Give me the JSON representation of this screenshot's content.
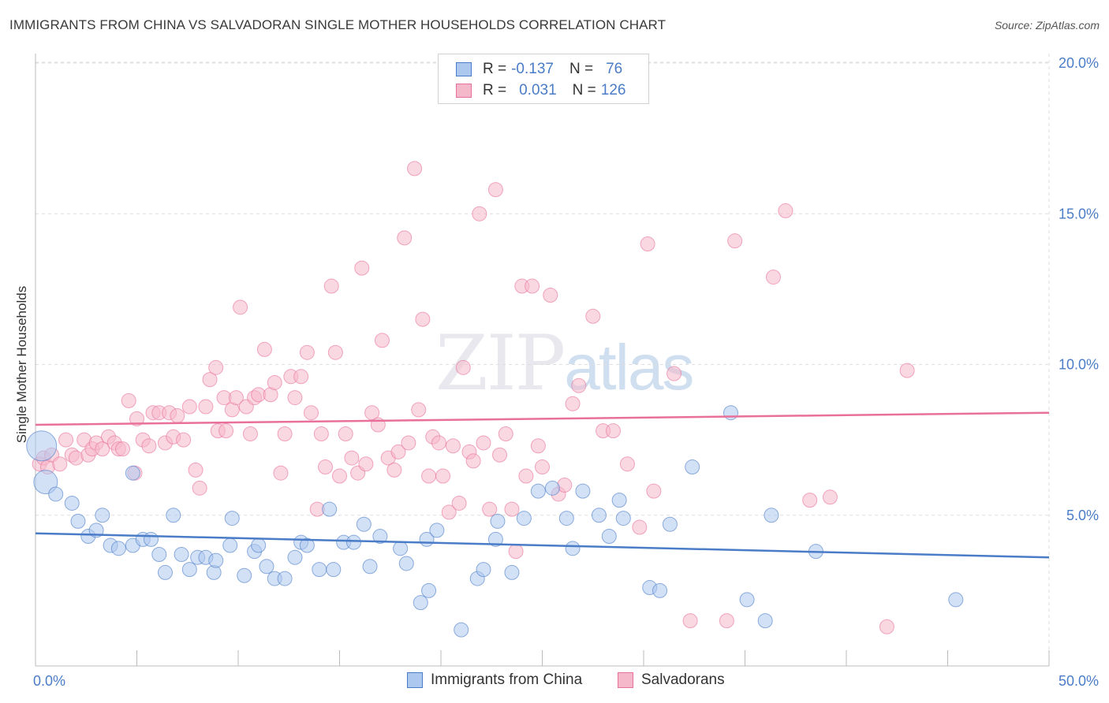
{
  "title": "IMMIGRANTS FROM CHINA VS SALVADORAN SINGLE MOTHER HOUSEHOLDS CORRELATION CHART",
  "source": "Source: ZipAtlas.com",
  "watermark": {
    "zip": "ZIP",
    "atlas": "atlas"
  },
  "legend": {
    "r_label": "R =",
    "n_label": "N =",
    "series": [
      {
        "r": "-0.137",
        "n": "76"
      },
      {
        "r": "0.031",
        "n": "126"
      }
    ]
  },
  "bottom_legend": [
    "Immigrants from China",
    "Salvadorans"
  ],
  "colors": {
    "blue": "#4a7cc7",
    "blue_fill": "#adc8ef",
    "pink": "#e8709a",
    "pink_fill": "#f5b8cb",
    "grid": "#dddddd"
  },
  "chart_data": {
    "type": "scatter",
    "ylabel": "Single Mother Households",
    "xlim": [
      0,
      50
    ],
    "ylim": [
      0,
      20
    ],
    "x_tick_labels": [
      "0.0%",
      "50.0%"
    ],
    "y_ticks": [
      5,
      10,
      15,
      20
    ],
    "y_tick_labels": [
      "5.0%",
      "10.0%",
      "15.0%",
      "20.0%"
    ],
    "grid": true,
    "legend_position": "top-center",
    "series": [
      {
        "name": "Immigrants from China",
        "color": "#4a7cc7",
        "trend": [
          [
            0,
            4.4
          ],
          [
            50,
            3.6
          ]
        ],
        "points": [
          [
            0.3,
            7.3
          ],
          [
            0.5,
            6.1
          ],
          [
            1.0,
            5.7
          ],
          [
            1.8,
            5.4
          ],
          [
            2.1,
            4.8
          ],
          [
            2.6,
            4.3
          ],
          [
            3.0,
            4.5
          ],
          [
            3.3,
            5.0
          ],
          [
            3.7,
            4.0
          ],
          [
            4.1,
            3.9
          ],
          [
            4.8,
            6.4
          ],
          [
            4.8,
            4.0
          ],
          [
            5.3,
            4.2
          ],
          [
            5.7,
            4.2
          ],
          [
            6.1,
            3.7
          ],
          [
            6.4,
            3.1
          ],
          [
            6.8,
            5.0
          ],
          [
            7.2,
            3.7
          ],
          [
            7.6,
            3.2
          ],
          [
            8.0,
            3.6
          ],
          [
            8.4,
            3.6
          ],
          [
            8.8,
            3.1
          ],
          [
            8.9,
            3.5
          ],
          [
            9.6,
            4.0
          ],
          [
            9.7,
            4.9
          ],
          [
            10.3,
            3.0
          ],
          [
            10.8,
            3.8
          ],
          [
            11.0,
            4.0
          ],
          [
            11.4,
            3.3
          ],
          [
            11.8,
            2.9
          ],
          [
            12.3,
            2.9
          ],
          [
            12.8,
            3.6
          ],
          [
            13.1,
            4.1
          ],
          [
            13.4,
            4.0
          ],
          [
            14.0,
            3.2
          ],
          [
            14.5,
            5.2
          ],
          [
            14.7,
            3.2
          ],
          [
            15.2,
            4.1
          ],
          [
            15.7,
            4.1
          ],
          [
            16.2,
            4.7
          ],
          [
            16.5,
            3.3
          ],
          [
            17.0,
            4.3
          ],
          [
            18.0,
            3.9
          ],
          [
            18.3,
            3.4
          ],
          [
            19.0,
            2.1
          ],
          [
            19.3,
            4.2
          ],
          [
            19.4,
            2.5
          ],
          [
            19.8,
            4.5
          ],
          [
            21.0,
            1.2
          ],
          [
            21.8,
            2.9
          ],
          [
            22.1,
            3.2
          ],
          [
            22.7,
            4.2
          ],
          [
            22.8,
            4.8
          ],
          [
            23.5,
            3.1
          ],
          [
            24.1,
            4.9
          ],
          [
            24.8,
            5.8
          ],
          [
            25.5,
            5.9
          ],
          [
            26.2,
            4.9
          ],
          [
            26.5,
            3.9
          ],
          [
            27.0,
            5.8
          ],
          [
            27.8,
            5.0
          ],
          [
            28.3,
            4.3
          ],
          [
            28.8,
            5.5
          ],
          [
            29.0,
            4.9
          ],
          [
            30.3,
            2.6
          ],
          [
            30.8,
            2.5
          ],
          [
            31.3,
            4.7
          ],
          [
            32.4,
            6.6
          ],
          [
            34.3,
            8.4
          ],
          [
            35.1,
            2.2
          ],
          [
            36.0,
            1.5
          ],
          [
            36.3,
            5.0
          ],
          [
            38.5,
            3.8
          ],
          [
            45.4,
            2.2
          ]
        ]
      },
      {
        "name": "Salvadorans",
        "color": "#e8709a",
        "trend": [
          [
            0,
            8.0
          ],
          [
            50,
            8.4
          ]
        ],
        "points": [
          [
            0.2,
            6.7
          ],
          [
            0.4,
            6.9
          ],
          [
            0.6,
            6.6
          ],
          [
            0.8,
            7.0
          ],
          [
            1.2,
            6.7
          ],
          [
            1.5,
            7.5
          ],
          [
            1.8,
            7.0
          ],
          [
            2.0,
            6.9
          ],
          [
            2.4,
            7.5
          ],
          [
            2.6,
            7.0
          ],
          [
            2.8,
            7.2
          ],
          [
            3.0,
            7.4
          ],
          [
            3.3,
            7.2
          ],
          [
            3.6,
            7.6
          ],
          [
            3.9,
            7.4
          ],
          [
            4.1,
            7.2
          ],
          [
            4.3,
            7.2
          ],
          [
            4.6,
            8.8
          ],
          [
            4.9,
            6.4
          ],
          [
            5.0,
            8.2
          ],
          [
            5.3,
            7.5
          ],
          [
            5.6,
            7.3
          ],
          [
            5.8,
            8.4
          ],
          [
            6.1,
            8.4
          ],
          [
            6.4,
            7.4
          ],
          [
            6.6,
            8.4
          ],
          [
            6.8,
            7.6
          ],
          [
            7.0,
            8.3
          ],
          [
            7.3,
            7.5
          ],
          [
            7.6,
            8.6
          ],
          [
            7.9,
            6.5
          ],
          [
            8.1,
            5.9
          ],
          [
            8.4,
            8.6
          ],
          [
            8.6,
            9.5
          ],
          [
            8.9,
            9.9
          ],
          [
            9.0,
            7.8
          ],
          [
            9.3,
            8.9
          ],
          [
            9.4,
            7.8
          ],
          [
            9.7,
            8.5
          ],
          [
            9.9,
            8.9
          ],
          [
            10.1,
            11.9
          ],
          [
            10.4,
            8.6
          ],
          [
            10.6,
            7.7
          ],
          [
            10.8,
            8.9
          ],
          [
            11.0,
            9.0
          ],
          [
            11.3,
            10.5
          ],
          [
            11.6,
            9.0
          ],
          [
            11.8,
            9.4
          ],
          [
            12.1,
            6.4
          ],
          [
            12.3,
            7.7
          ],
          [
            12.6,
            9.6
          ],
          [
            12.8,
            8.9
          ],
          [
            13.1,
            9.6
          ],
          [
            13.4,
            10.4
          ],
          [
            13.6,
            8.4
          ],
          [
            13.9,
            5.2
          ],
          [
            14.1,
            7.7
          ],
          [
            14.3,
            6.6
          ],
          [
            14.6,
            12.6
          ],
          [
            14.8,
            10.4
          ],
          [
            15.0,
            6.3
          ],
          [
            15.3,
            7.7
          ],
          [
            15.6,
            6.9
          ],
          [
            15.9,
            6.4
          ],
          [
            16.1,
            13.2
          ],
          [
            16.3,
            6.7
          ],
          [
            16.6,
            8.4
          ],
          [
            16.9,
            8.0
          ],
          [
            17.1,
            10.8
          ],
          [
            17.4,
            6.9
          ],
          [
            17.7,
            6.5
          ],
          [
            17.9,
            7.1
          ],
          [
            18.2,
            14.2
          ],
          [
            18.4,
            7.4
          ],
          [
            18.7,
            16.5
          ],
          [
            18.9,
            8.5
          ],
          [
            19.1,
            11.5
          ],
          [
            19.4,
            6.3
          ],
          [
            19.6,
            7.6
          ],
          [
            19.9,
            7.4
          ],
          [
            20.1,
            6.3
          ],
          [
            20.4,
            5.1
          ],
          [
            20.6,
            7.3
          ],
          [
            20.9,
            5.4
          ],
          [
            21.1,
            9.9
          ],
          [
            21.4,
            7.1
          ],
          [
            21.6,
            6.8
          ],
          [
            21.9,
            15.0
          ],
          [
            22.1,
            7.4
          ],
          [
            22.4,
            5.2
          ],
          [
            22.7,
            15.8
          ],
          [
            22.9,
            7.0
          ],
          [
            23.2,
            7.7
          ],
          [
            23.5,
            5.2
          ],
          [
            23.7,
            3.8
          ],
          [
            24.0,
            12.6
          ],
          [
            24.2,
            6.3
          ],
          [
            24.5,
            12.6
          ],
          [
            24.8,
            7.3
          ],
          [
            25.0,
            6.6
          ],
          [
            25.4,
            12.3
          ],
          [
            25.8,
            5.7
          ],
          [
            26.1,
            6.0
          ],
          [
            26.5,
            8.7
          ],
          [
            26.8,
            9.3
          ],
          [
            27.5,
            11.6
          ],
          [
            28.0,
            7.8
          ],
          [
            28.5,
            7.8
          ],
          [
            29.2,
            6.7
          ],
          [
            29.8,
            4.6
          ],
          [
            30.2,
            14.0
          ],
          [
            30.5,
            5.8
          ],
          [
            31.5,
            9.7
          ],
          [
            32.3,
            1.5
          ],
          [
            34.1,
            1.5
          ],
          [
            34.5,
            14.1
          ],
          [
            36.4,
            12.9
          ],
          [
            37.0,
            15.1
          ],
          [
            38.2,
            5.5
          ],
          [
            39.2,
            5.6
          ],
          [
            42.0,
            1.3
          ],
          [
            43.0,
            9.8
          ]
        ]
      }
    ]
  }
}
